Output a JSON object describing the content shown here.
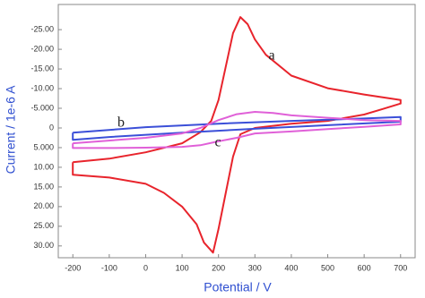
{
  "chart_data": {
    "type": "line",
    "x_label": "Potential / V",
    "y_label": "Current / 1e-6 A",
    "xlim": [
      -240,
      740
    ],
    "ylim": [
      33,
      -31.4
    ],
    "xticks": [
      -200,
      -100,
      0,
      100,
      200,
      300,
      400,
      500,
      600,
      700
    ],
    "yticks": [
      {
        "value": -25,
        "label": "-25.00"
      },
      {
        "value": -20,
        "label": "-20.00"
      },
      {
        "value": -15,
        "label": "-15.00"
      },
      {
        "value": -10,
        "label": "-10.00"
      },
      {
        "value": -5,
        "label": "-5.000"
      },
      0,
      {
        "value": 5,
        "label": "5.000"
      },
      {
        "value": 10,
        "label": "10.00"
      },
      {
        "value": 15,
        "label": "15.00"
      },
      {
        "value": 20,
        "label": "20.00"
      },
      {
        "value": 25,
        "label": "25.00"
      },
      {
        "value": 30,
        "label": "30.00"
      }
    ],
    "series": [
      {
        "name": "a",
        "color": "#e8242c",
        "x": [
          -200,
          -100,
          0,
          100,
          150,
          180,
          200,
          220,
          240,
          260,
          280,
          300,
          330,
          400,
          500,
          600,
          700,
          700,
          650,
          600,
          500,
          400,
          300,
          260,
          240,
          220,
          200,
          185,
          160,
          140,
          100,
          50,
          0,
          -100,
          -200,
          -200
        ],
        "values": [
          8.7,
          7.8,
          6.2,
          3.9,
          1.1,
          -1.8,
          -7.1,
          -15.6,
          -24.1,
          -28.2,
          -26.4,
          -22.5,
          -18.6,
          -13.3,
          -10.1,
          -8.5,
          -7.1,
          -6.2,
          -4.8,
          -3.4,
          -1.8,
          -1.1,
          0,
          1.6,
          7.3,
          16.5,
          25.7,
          31.7,
          29.1,
          24.5,
          20,
          16.5,
          14.2,
          12.6,
          11.9,
          8.7
        ]
      },
      {
        "name": "b",
        "color": "#3b4fd8",
        "x": [
          -200,
          0,
          200,
          400,
          600,
          700,
          700,
          500,
          300,
          100,
          -100,
          -200,
          -200
        ],
        "values": [
          1.2,
          -0.2,
          -1.1,
          -1.8,
          -2.4,
          -2.8,
          -1.6,
          -0.7,
          0.2,
          1.2,
          2.3,
          3.0,
          1.2
        ]
      },
      {
        "name": "c",
        "color": "#e060d8",
        "x": [
          -200,
          0,
          100,
          150,
          200,
          250,
          300,
          350,
          400,
          500,
          600,
          700,
          700,
          600,
          500,
          400,
          300,
          250,
          200,
          150,
          100,
          0,
          -100,
          -200,
          -200
        ],
        "values": [
          3.9,
          2.5,
          1.4,
          0,
          -2.0,
          -3.5,
          -4.1,
          -3.8,
          -3.2,
          -2.6,
          -2.0,
          -1.8,
          -0.9,
          -0.3,
          0.3,
          0.9,
          1.4,
          2.5,
          3.4,
          4.4,
          4.8,
          5.0,
          5.1,
          5.1,
          3.9
        ]
      }
    ]
  }
}
